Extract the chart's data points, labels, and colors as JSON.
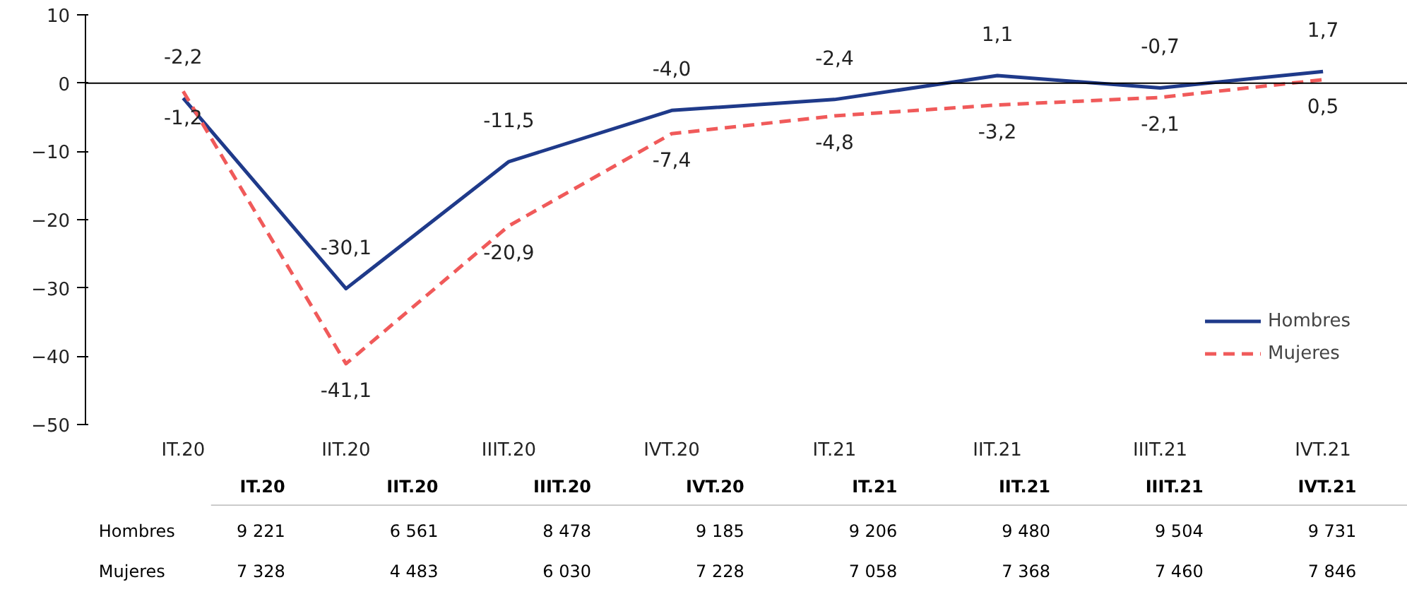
{
  "chart_data": [
    {
      "type": "line",
      "categories": [
        "IT.20",
        "IIT.20",
        "IIIT.20",
        "IVT.20",
        "IT.21",
        "IIT.21",
        "IIIT.21",
        "IVT.21"
      ],
      "series": [
        {
          "name": "Hombres",
          "color": "#1f3a8a",
          "line_style": "solid",
          "values": [
            -2.2,
            -30.1,
            -11.5,
            -4.0,
            -2.4,
            1.1,
            -0.7,
            1.7
          ],
          "value_labels": [
            "-2,2",
            "-30,1",
            "-11,5",
            "-4,0",
            "-2,4",
            "1,1",
            "-0,7",
            "1,7"
          ]
        },
        {
          "name": "Mujeres",
          "color": "#f05a5a",
          "line_style": "dashed",
          "values": [
            -1.2,
            -41.1,
            -20.9,
            -7.4,
            -4.8,
            -3.2,
            -2.1,
            0.5
          ],
          "value_labels": [
            "-1,2",
            "-41,1",
            "-20,9",
            "-7,4",
            "-4,8",
            "-3,2",
            "-2,1",
            "0,5"
          ]
        }
      ],
      "ylim": [
        -50,
        10
      ],
      "yticks": [
        -50,
        -40,
        -30,
        -20,
        -10,
        0,
        10
      ],
      "grid": false,
      "legend": "bottom right",
      "marker": "none",
      "ref_lines": [
        {
          "axis": "y",
          "value": 0,
          "color": "#000000"
        }
      ]
    },
    {
      "type": "heatmap",
      "categories": [
        "IT.20",
        "IIT.20",
        "IIIT.20",
        "IVT.20",
        "IT.21",
        "IIT.21",
        "IIIT.21",
        "IVT.21"
      ],
      "y_categories": [
        "Hombres",
        "Mujeres"
      ],
      "cells": [
        [
          9221,
          6561,
          8478,
          9185,
          9206,
          9480,
          9504,
          9731
        ],
        [
          7328,
          4483,
          6030,
          7228,
          7058,
          7368,
          7460,
          7846
        ]
      ],
      "cell_labels": [
        [
          "9 221",
          "6 561",
          "8 478",
          "9 185",
          "9 206",
          "9 480",
          "9 504",
          "9 731"
        ],
        [
          "7 328",
          "4 483",
          "6 030",
          "7 228",
          "7 058",
          "7 368",
          "7 460",
          "7 846"
        ]
      ]
    }
  ]
}
